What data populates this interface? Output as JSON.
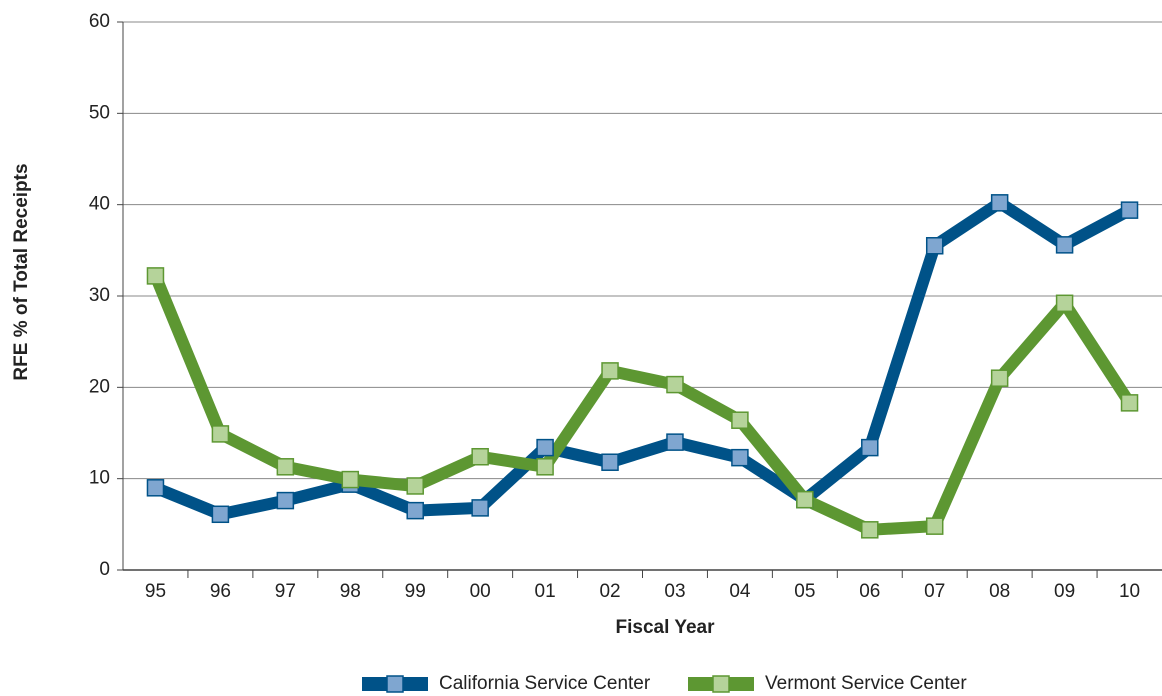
{
  "chart_data": {
    "type": "line",
    "x_label": "Fiscal Year",
    "y_label": "RFE % of Total Receipts",
    "categories": [
      "95",
      "96",
      "97",
      "98",
      "99",
      "00",
      "01",
      "02",
      "03",
      "04",
      "05",
      "06",
      "07",
      "08",
      "09",
      "10"
    ],
    "series": [
      {
        "name": "California Service Center",
        "color": "#005288",
        "marker_color": "#7fa6d0",
        "values": [
          9.0,
          6.1,
          7.6,
          9.4,
          6.5,
          6.8,
          13.4,
          11.8,
          14.0,
          12.3,
          7.7,
          13.4,
          35.5,
          40.2,
          35.6,
          39.4
        ]
      },
      {
        "name": "Vermont Service Center",
        "color": "#5d9732",
        "marker_color": "#b5d39a",
        "values": [
          32.2,
          14.9,
          11.3,
          9.9,
          9.2,
          12.4,
          11.3,
          21.8,
          20.3,
          16.4,
          7.7,
          4.4,
          4.8,
          21.0,
          29.2,
          18.3
        ]
      }
    ],
    "ylim": [
      0,
      60
    ],
    "yticks": [
      0,
      10,
      20,
      30,
      40,
      50,
      60
    ],
    "grid": true,
    "legend": "bottom"
  }
}
